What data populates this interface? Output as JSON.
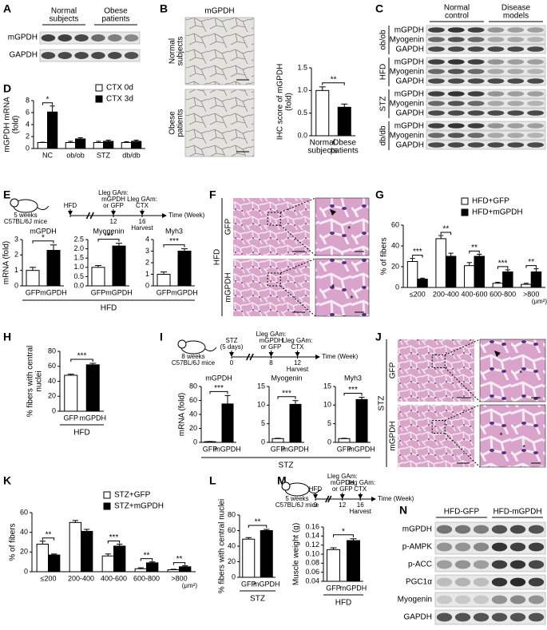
{
  "panels": {
    "A": {
      "label": "A",
      "groups": [
        [
          "Normal",
          "subjects"
        ],
        [
          "Obese",
          "patients"
        ]
      ],
      "rows": [
        "mGPDH",
        "GAPDH"
      ]
    },
    "B": {
      "label": "B",
      "title": "mGPDH",
      "image_labels": [
        [
          "Normal",
          "subjects"
        ],
        [
          "Obese",
          "patients"
        ]
      ],
      "chart": {
        "type": "bar",
        "ylabel": [
          "IHC score of mGPDH",
          "(fold)"
        ],
        "categories": [
          [
            "Normal",
            "subjects"
          ],
          [
            "Obese",
            "patients"
          ]
        ],
        "series": [
          {
            "colors": [
              "#ffffff",
              "#000000"
            ],
            "values": [
              1.0,
              0.63
            ],
            "errors": [
              0.08,
              0.07
            ]
          }
        ],
        "ylim": [
          0,
          1.5
        ],
        "yticks": [
          {
            "value": 0,
            "label": "0.0"
          },
          0.5,
          {
            "value": 1,
            "label": "1.0"
          },
          1.5
        ],
        "significance": [
          "**"
        ]
      }
    },
    "C": {
      "label": "C",
      "groups": [
        [
          "Normal",
          "control"
        ],
        [
          "Disease",
          "models"
        ]
      ],
      "sections": [
        {
          "name": "ob/ob",
          "rows": [
            "mGPDH",
            "Myogenin",
            "GAPDH"
          ]
        },
        {
          "name": "HFD",
          "rows": [
            "mGPDH",
            "Myogenin",
            "GAPDH"
          ]
        },
        {
          "name": "STZ",
          "rows": [
            "mGPDH",
            "Myogenin",
            "GAPDH"
          ]
        },
        {
          "name": "db/db",
          "rows": [
            "mGPDH",
            "Myogenin",
            "GAPDH"
          ]
        }
      ]
    },
    "D": {
      "label": "D",
      "chart": {
        "type": "bar",
        "ylabel": [
          "mGPDH mRNA",
          "(fold)"
        ],
        "categories": [
          "NC",
          "ob/ob",
          "STZ",
          "db/db"
        ],
        "series": [
          {
            "name": "CTX 0d",
            "color": "#ffffff",
            "values": [
              1,
              1,
              1,
              1
            ],
            "errors": [
              0.05,
              0.2,
              0.2,
              0.15
            ]
          },
          {
            "name": "CTX 3d",
            "color": "#000000",
            "values": [
              6.1,
              1.6,
              1.2,
              1.2
            ],
            "errors": [
              1.0,
              0.2,
              0.2,
              0.2
            ]
          }
        ],
        "ylim": [
          0,
          8
        ],
        "yticks": [
          0,
          2,
          4,
          6,
          8
        ],
        "significance": [
          "*",
          null,
          null,
          null
        ]
      }
    },
    "E": {
      "label": "E",
      "group_label": "HFD",
      "timeline": {
        "mouse": [
          "5 weeks",
          "C57BL/6J mice"
        ],
        "weeks": [
          null,
          12,
          16
        ],
        "events": [
          [
            "HFD"
          ],
          [
            "Lleg GAm:",
            "mGPDH",
            "or GFP"
          ],
          [
            "Lleg GAm:",
            "CTX"
          ]
        ],
        "axis_label": "Time (Week)",
        "end": "Harvest"
      },
      "charts": [
        {
          "type": "bar",
          "title": "mGPDH",
          "ylabel": [
            "mRNA (fold)"
          ],
          "categories": [
            "GFP",
            "mGPDH"
          ],
          "series": [
            {
              "colors": [
                "#ffffff",
                "#000000"
              ],
              "values": [
                1.0,
                2.3
              ],
              "errors": [
                0.2,
                0.35
              ]
            }
          ],
          "ylim": [
            0,
            3
          ],
          "yticks": [
            0,
            1,
            2,
            3
          ],
          "significance": [
            "*"
          ]
        },
        {
          "type": "bar",
          "title": "Myogenin",
          "categories": [
            "GFP",
            "mGPDH"
          ],
          "series": [
            {
              "colors": [
                "#ffffff",
                "#000000"
              ],
              "values": [
                1.0,
                2.15
              ],
              "errors": [
                0.1,
                0.15
              ]
            }
          ],
          "ylim": [
            0,
            2.5
          ],
          "yticks": [
            {
              "value": 0,
              "label": "0.0"
            },
            0.5,
            {
              "value": 1,
              "label": "1.0"
            },
            1.5,
            {
              "value": 2,
              "label": "2.0"
            },
            2.5
          ],
          "significance": [
            "***"
          ]
        },
        {
          "type": "bar",
          "title": "Myh3",
          "categories": [
            "GFP",
            "mGPDH"
          ],
          "series": [
            {
              "colors": [
                "#ffffff",
                "#000000"
              ],
              "values": [
                1.0,
                3.0
              ],
              "errors": [
                0.2,
                0.2
              ]
            }
          ],
          "ylim": [
            0,
            4
          ],
          "yticks": [
            0,
            1,
            2,
            3,
            4
          ],
          "significance": [
            "***"
          ]
        }
      ]
    },
    "F": {
      "label": "F",
      "group": "HFD",
      "image_labels": [
        "GFP",
        "mGPDH"
      ],
      "annotations": [
        "*",
        "*",
        "*"
      ]
    },
    "G": {
      "label": "G",
      "chart": {
        "type": "bar",
        "ylabel": [
          "% of fibers"
        ],
        "categories": [
          "≤200",
          "200-400",
          "400-600",
          "600-800",
          ">800"
        ],
        "x_unit": "(μm²)",
        "series": [
          {
            "name": "HFD+GFP",
            "color": "#ffffff",
            "values": [
              25,
              47,
              21,
              4,
              3
            ],
            "errors": [
              3,
              3,
              3,
              1,
              1
            ]
          },
          {
            "name": "HFD+mGPDH",
            "color": "#000000",
            "values": [
              8,
              30,
              30,
              15,
              15
            ],
            "errors": [
              1,
              3,
              2,
              2,
              3
            ]
          }
        ],
        "ylim": [
          0,
          60
        ],
        "yticks": [
          0,
          20,
          40,
          60
        ],
        "significance": [
          "***",
          "**",
          "**",
          "***",
          "**"
        ]
      }
    },
    "H": {
      "label": "H",
      "chart": {
        "type": "bar",
        "ylabel": [
          "% fibers with central",
          "nuclei"
        ],
        "categories": [
          "GFP",
          "mGPDH"
        ],
        "group_label": "HFD",
        "series": [
          {
            "colors": [
              "#ffffff",
              "#000000"
            ],
            "values": [
              48,
              62
            ],
            "errors": [
              1.5,
              2
            ]
          }
        ],
        "ylim": [
          0,
          80
        ],
        "yticks": [
          0,
          20,
          40,
          60,
          80
        ],
        "significance": [
          "***"
        ]
      }
    },
    "I": {
      "label": "I",
      "group_label": "STZ",
      "timeline": {
        "mouse": [
          "8 weeks",
          "C57BL/6J mice"
        ],
        "weeks": [
          0,
          8,
          12
        ],
        "events": [
          [
            "STZ",
            "(5 days)"
          ],
          [
            "Lleg GAm:",
            "mGPDH",
            "or GFP"
          ],
          [
            "Lleg GAm:",
            "CTX"
          ]
        ],
        "axis_label": "Time (Week)",
        "end": "Harvest"
      },
      "charts": [
        {
          "type": "bar",
          "title": "mGPDH",
          "ylabel": [
            "mRNA (fold)"
          ],
          "categories": [
            "GFP",
            "mGPDH"
          ],
          "series": [
            {
              "colors": [
                "#ffffff",
                "#000000"
              ],
              "values": [
                1,
                55
              ],
              "errors": [
                0.3,
                12
              ]
            }
          ],
          "ylim": [
            0,
            80
          ],
          "yticks": [
            0,
            20,
            40,
            60,
            80
          ],
          "significance": [
            "***"
          ]
        },
        {
          "type": "bar",
          "title": "Myogenin",
          "categories": [
            "GFP",
            "mGPDH"
          ],
          "series": [
            {
              "colors": [
                "#ffffff",
                "#000000"
              ],
              "values": [
                1,
                10.2
              ],
              "errors": [
                0.1,
                1
              ]
            }
          ],
          "ylim": [
            0,
            15
          ],
          "yticks": [
            0,
            5,
            10,
            15
          ],
          "significance": [
            "***"
          ]
        },
        {
          "type": "bar",
          "title": "Myh3",
          "categories": [
            "GFP",
            "mGPDH"
          ],
          "series": [
            {
              "colors": [
                "#ffffff",
                "#000000"
              ],
              "values": [
                1,
                11.5
              ],
              "errors": [
                0.1,
                0.6
              ]
            }
          ],
          "ylim": [
            0,
            15
          ],
          "yticks": [
            0,
            5,
            10,
            15
          ],
          "significance": [
            "***"
          ]
        }
      ]
    },
    "J": {
      "label": "J",
      "group": "STZ",
      "image_labels": [
        "GFP",
        "mGPDH"
      ],
      "annotations": [
        "*",
        "*",
        "*"
      ]
    },
    "K": {
      "label": "K",
      "chart": {
        "type": "bar",
        "ylabel": [
          "% of fibers"
        ],
        "categories": [
          "≤200",
          "200-400",
          "400-600",
          "600-800",
          ">800"
        ],
        "x_unit": "(μm²)",
        "series": [
          {
            "name": "STZ+GFP",
            "color": "#ffffff",
            "values": [
              28,
              50,
              16,
              3,
              2
            ],
            "errors": [
              3,
              2,
              2,
              1,
              0.5
            ]
          },
          {
            "name": "STZ+mGPDH",
            "color": "#000000",
            "values": [
              17,
              41,
              26,
              9,
              5
            ],
            "errors": [
              1,
              2,
              2,
              1,
              1
            ]
          }
        ],
        "ylim": [
          0,
          60
        ],
        "yticks": [
          0,
          20,
          40,
          60
        ],
        "significance": [
          "**",
          null,
          "***",
          "**",
          "**"
        ]
      }
    },
    "L": {
      "label": "L",
      "chart": {
        "type": "bar",
        "ylabel": [
          "% fibers with central nuclei"
        ],
        "categories": [
          "GFP",
          "mGPDH"
        ],
        "group_label": "STZ",
        "series": [
          {
            "colors": [
              "#ffffff",
              "#000000"
            ],
            "values": [
              49,
              60
            ],
            "errors": [
              2,
              1.5
            ]
          }
        ],
        "ylim": [
          0,
          80
        ],
        "yticks": [
          0,
          20,
          40,
          60,
          80
        ],
        "significance": [
          "**"
        ]
      }
    },
    "M": {
      "label": "M",
      "timeline": {
        "mouse": [
          "5 weeks",
          "C57BL/6J mice"
        ],
        "weeks": [
          0,
          12,
          16
        ],
        "events": [
          [
            "HFD"
          ],
          [
            "Lleg GAm:",
            "mGPDH",
            "or GFP"
          ],
          [
            "Lleg GAm:",
            "CTX"
          ]
        ],
        "axis_label": "Time (Week)",
        "end": "Harvest"
      },
      "chart": {
        "type": "bar",
        "ylabel": [
          "Muscle weight (g)"
        ],
        "categories": [
          "GFP",
          "mGPDH"
        ],
        "group_label": "HFD",
        "series": [
          {
            "colors": [
              "#ffffff",
              "#000000"
            ],
            "values": [
              0.11,
              0.13
            ],
            "errors": [
              0.004,
              0.004
            ]
          }
        ],
        "ylim": [
          0.04,
          0.16
        ],
        "yticks": [
          0.04,
          0.06,
          0.08,
          {
            "value": 0.1,
            "label": "0.10"
          },
          0.12,
          0.14,
          0.16
        ],
        "significance": [
          "*"
        ]
      }
    },
    "N": {
      "label": "N",
      "groups": [
        [
          "HFD-GFP"
        ],
        [
          "HFD-mGPDH"
        ]
      ],
      "rows": [
        "mGPDH",
        "p-AMPK",
        "p-ACC",
        "PGC1α",
        "Myogenin",
        "GAPDH"
      ]
    }
  }
}
